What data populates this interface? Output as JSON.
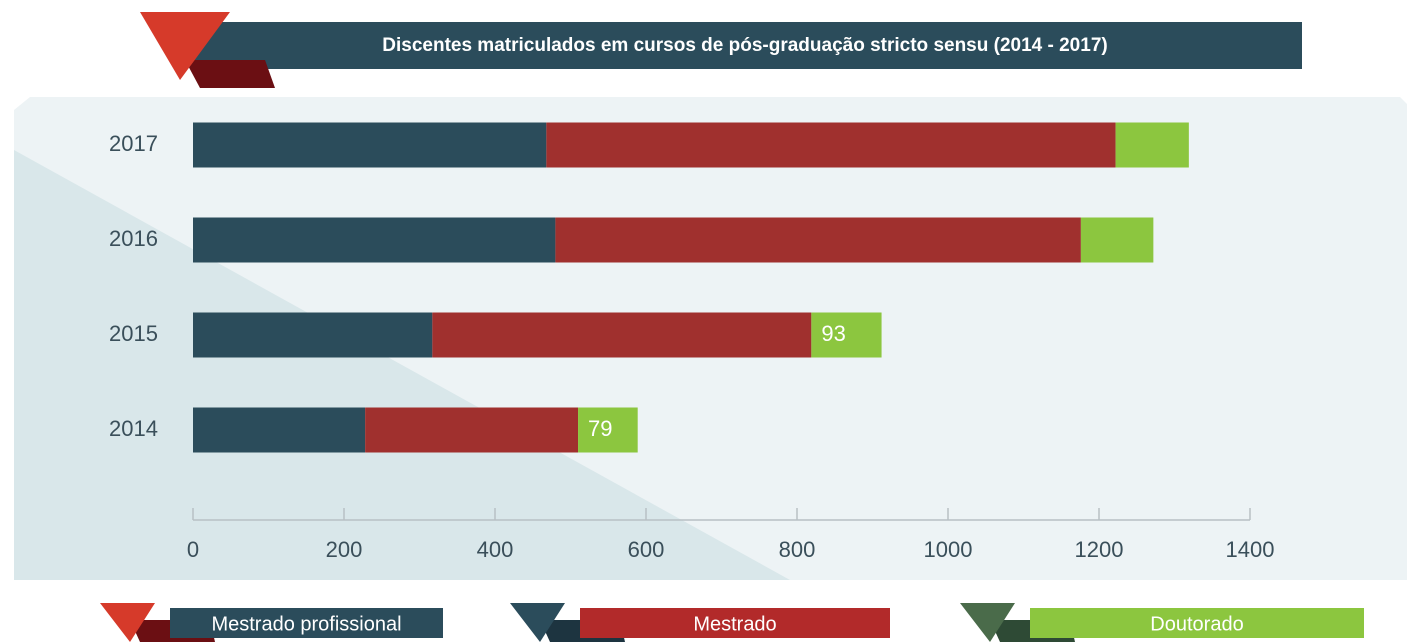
{
  "chart_data": {
    "type": "stacked-barh",
    "title": "Discentes matriculados em cursos de pós-graduação stricto sensu (2014 - 2017)",
    "categories": [
      "2017",
      "2016",
      "2015",
      "2014"
    ],
    "series": [
      {
        "name": "Mestrado profissional",
        "color": "#2b4c5b",
        "values": [
          468,
          480,
          317,
          228
        ]
      },
      {
        "name": "Mestrado",
        "color": "#a0302e",
        "values": [
          754,
          696,
          502,
          282
        ]
      },
      {
        "name": "Doutorado",
        "color": "#8cc63f",
        "values": [
          97,
          96,
          93,
          79
        ],
        "value_labels": [
          null,
          null,
          "93",
          "79"
        ]
      }
    ],
    "xlim": [
      0,
      1400
    ],
    "xticks": [
      0,
      200,
      400,
      600,
      800,
      1000,
      1200,
      1400
    ]
  }
}
